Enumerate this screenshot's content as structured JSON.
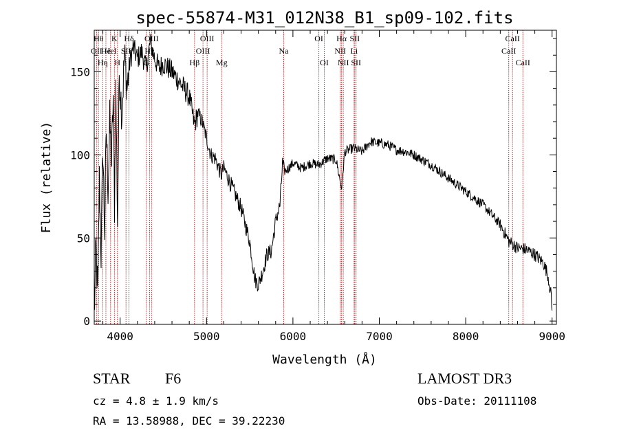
{
  "chart_data": {
    "type": "line",
    "title": "spec-55874-M31_012N38_B1_sp09-102.fits",
    "xlabel": "Wavelength (Å)",
    "ylabel": "Flux (relative)",
    "xlim": [
      3700,
      9050
    ],
    "ylim": [
      -2,
      175
    ],
    "xticks": [
      4000,
      5000,
      6000,
      7000,
      8000,
      9000
    ],
    "yticks": [
      0,
      50,
      100,
      150
    ],
    "series": [
      {
        "name": "flux",
        "anchors": [
          [
            3700,
            2
          ],
          [
            3720,
            45
          ],
          [
            3740,
            15
          ],
          [
            3760,
            85
          ],
          [
            3780,
            40
          ],
          [
            3800,
            105
          ],
          [
            3820,
            55
          ],
          [
            3840,
            115
          ],
          [
            3860,
            80
          ],
          [
            3880,
            120
          ],
          [
            3900,
            95
          ],
          [
            3920,
            135
          ],
          [
            3935,
            70
          ],
          [
            3950,
            140
          ],
          [
            3970,
            60
          ],
          [
            3990,
            150
          ],
          [
            4020,
            125
          ],
          [
            4050,
            160
          ],
          [
            4080,
            140
          ],
          [
            4110,
            155
          ],
          [
            4150,
            165
          ],
          [
            4200,
            158
          ],
          [
            4250,
            162
          ],
          [
            4300,
            152
          ],
          [
            4350,
            168
          ],
          [
            4400,
            158
          ],
          [
            4450,
            152
          ],
          [
            4500,
            155
          ],
          [
            4600,
            150
          ],
          [
            4700,
            143
          ],
          [
            4800,
            135
          ],
          [
            4860,
            118
          ],
          [
            4900,
            125
          ],
          [
            4950,
            120
          ],
          [
            5000,
            110
          ],
          [
            5050,
            100
          ],
          [
            5100,
            98
          ],
          [
            5170,
            88
          ],
          [
            5200,
            92
          ],
          [
            5300,
            80
          ],
          [
            5400,
            68
          ],
          [
            5500,
            48
          ],
          [
            5560,
            25
          ],
          [
            5600,
            22
          ],
          [
            5650,
            30
          ],
          [
            5700,
            40
          ],
          [
            5750,
            42
          ],
          [
            5800,
            60
          ],
          [
            5850,
            70
          ],
          [
            5880,
            95
          ],
          [
            5900,
            90
          ],
          [
            5950,
            92
          ],
          [
            6000,
            95
          ],
          [
            6100,
            92
          ],
          [
            6200,
            95
          ],
          [
            6300,
            94
          ],
          [
            6400,
            98
          ],
          [
            6500,
            97
          ],
          [
            6563,
            80
          ],
          [
            6600,
            102
          ],
          [
            6700,
            104
          ],
          [
            6800,
            102
          ],
          [
            6900,
            108
          ],
          [
            7000,
            107
          ],
          [
            7100,
            106
          ],
          [
            7200,
            103
          ],
          [
            7300,
            102
          ],
          [
            7400,
            100
          ],
          [
            7500,
            97
          ],
          [
            7600,
            94
          ],
          [
            7700,
            90
          ],
          [
            7800,
            86
          ],
          [
            7900,
            82
          ],
          [
            8000,
            78
          ],
          [
            8100,
            74
          ],
          [
            8200,
            70
          ],
          [
            8300,
            64
          ],
          [
            8400,
            58
          ],
          [
            8500,
            48
          ],
          [
            8600,
            44
          ],
          [
            8700,
            43
          ],
          [
            8800,
            40
          ],
          [
            8900,
            35
          ],
          [
            8950,
            28
          ],
          [
            8990,
            15
          ],
          [
            9000,
            5
          ]
        ]
      }
    ],
    "lines": [
      {
        "wave": 3727,
        "label": "OII",
        "row": 1
      },
      {
        "wave": 3750,
        "label": "Hθ",
        "row": 0
      },
      {
        "wave": 3798,
        "label": "Hη",
        "row": 2
      },
      {
        "wave": 3835,
        "label": "He",
        "row": 1
      },
      {
        "wave": 3889,
        "label": "HeI",
        "row": 1
      },
      {
        "wave": 3934,
        "label": "K",
        "row": 0
      },
      {
        "wave": 3968,
        "label": "H",
        "row": 2
      },
      {
        "wave": 4068,
        "label": "SII",
        "row": 1
      },
      {
        "wave": 4102,
        "label": "Hδ",
        "row": 0
      },
      {
        "wave": 4304,
        "label": "G",
        "row": 2
      },
      {
        "wave": 4340,
        "label": "Hγ",
        "row": 1
      },
      {
        "wave": 4363,
        "label": "OIII",
        "row": 0
      },
      {
        "wave": 4861,
        "label": "Hβ",
        "row": 2
      },
      {
        "wave": 4959,
        "label": "OIII",
        "row": 1
      },
      {
        "wave": 5007,
        "label": "OIII",
        "row": 0
      },
      {
        "wave": 5175,
        "label": "Mg",
        "row": 2
      },
      {
        "wave": 5893,
        "label": "Na",
        "row": 1
      },
      {
        "wave": 6300,
        "label": "OI",
        "row": 0
      },
      {
        "wave": 6363,
        "label": "OI",
        "row": 2
      },
      {
        "wave": 6548,
        "label": "NII",
        "row": 1
      },
      {
        "wave": 6563,
        "label": "Hα",
        "row": 0
      },
      {
        "wave": 6583,
        "label": "NII",
        "row": 2
      },
      {
        "wave": 6708,
        "label": "Li",
        "row": 1
      },
      {
        "wave": 6716,
        "label": "SII",
        "row": 0
      },
      {
        "wave": 6731,
        "label": "SII",
        "row": 2
      },
      {
        "wave": 8498,
        "label": "CaII",
        "row": 1
      },
      {
        "wave": 8542,
        "label": "CaII",
        "row": 0
      },
      {
        "wave": 8662,
        "label": "CaII",
        "row": 2
      }
    ]
  },
  "info": {
    "class_label": "STAR",
    "subclass": "F6",
    "survey": "LAMOST DR3",
    "cz": "cz = 4.8 ± 1.9 km/s",
    "obs_date": "Obs-Date: 20111108",
    "coords": "RA =  13.58988, DEC =  39.22230"
  },
  "colors": {
    "spectrum": "#000000",
    "line_marker": "#cc2222",
    "axis": "#000000"
  }
}
